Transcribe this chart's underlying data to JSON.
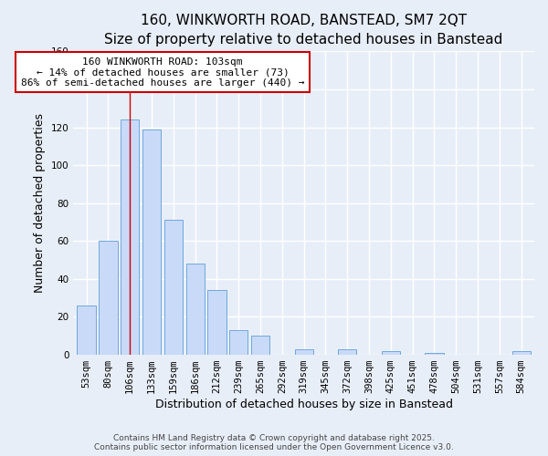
{
  "title": "160, WINKWORTH ROAD, BANSTEAD, SM7 2QT",
  "subtitle": "Size of property relative to detached houses in Banstead",
  "xlabel": "Distribution of detached houses by size in Banstead",
  "ylabel": "Number of detached properties",
  "bar_labels": [
    "53sqm",
    "80sqm",
    "106sqm",
    "133sqm",
    "159sqm",
    "186sqm",
    "212sqm",
    "239sqm",
    "265sqm",
    "292sqm",
    "319sqm",
    "345sqm",
    "372sqm",
    "398sqm",
    "425sqm",
    "451sqm",
    "478sqm",
    "504sqm",
    "531sqm",
    "557sqm",
    "584sqm"
  ],
  "bar_values": [
    26,
    60,
    124,
    119,
    71,
    48,
    34,
    13,
    10,
    0,
    3,
    0,
    3,
    0,
    2,
    0,
    1,
    0,
    0,
    0,
    2
  ],
  "bar_color": "#c9daf8",
  "bar_edge_color": "#6fa8dc",
  "vline_x_index": 2,
  "vline_color": "#cc0000",
  "annotation_line1": "160 WINKWORTH ROAD: 103sqm",
  "annotation_line2": "← 14% of detached houses are smaller (73)",
  "annotation_line3": "86% of semi-detached houses are larger (440) →",
  "annotation_box_color": "#ffffff",
  "annotation_box_edge": "#cc0000",
  "ylim": [
    0,
    160
  ],
  "yticks": [
    0,
    20,
    40,
    60,
    80,
    100,
    120,
    140,
    160
  ],
  "footer1": "Contains HM Land Registry data © Crown copyright and database right 2025.",
  "footer2": "Contains public sector information licensed under the Open Government Licence v3.0.",
  "background_color": "#e8eef8",
  "plot_bg_color": "#e8eef8",
  "grid_color": "#ffffff",
  "title_fontsize": 11,
  "subtitle_fontsize": 10,
  "axis_label_fontsize": 9,
  "tick_fontsize": 7.5,
  "annotation_fontsize": 8,
  "footer_fontsize": 6.5
}
